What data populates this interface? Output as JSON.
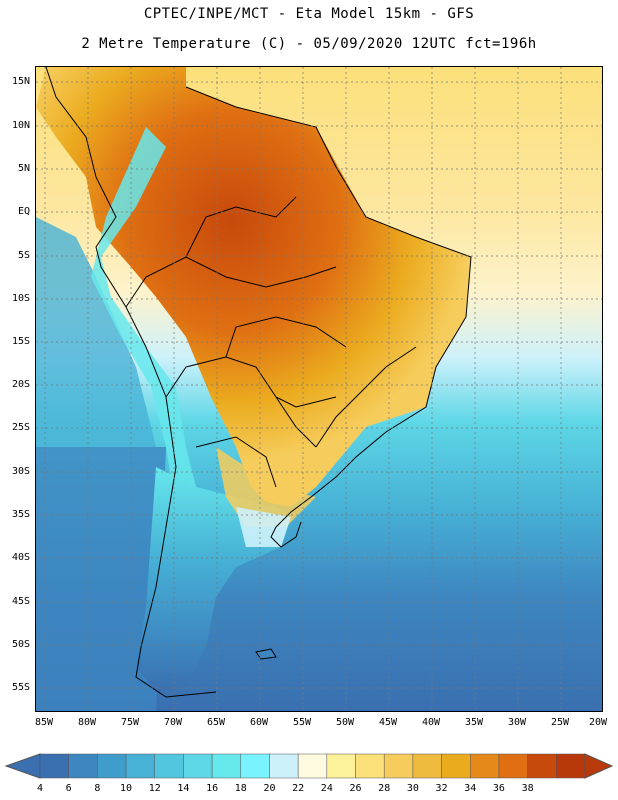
{
  "header": {
    "line1": "CPTEC/INPE/MCT -  Eta Model 15km - GFS",
    "line2": "2 Metre Temperature (C) - 05/09/2020 12UTC fct=196h"
  },
  "axes": {
    "lat_labels": [
      "15N",
      "10N",
      "5N",
      "EQ",
      "5S",
      "10S",
      "15S",
      "20S",
      "25S",
      "30S",
      "35S",
      "40S",
      "45S",
      "50S",
      "55S"
    ],
    "lon_labels": [
      "85W",
      "80W",
      "75W",
      "70W",
      "65W",
      "60W",
      "55W",
      "50W",
      "45W",
      "40W",
      "35W",
      "30W",
      "25W",
      "20W"
    ]
  },
  "colorbar": {
    "labels": [
      "4",
      "6",
      "8",
      "10",
      "12",
      "14",
      "16",
      "18",
      "20",
      "22",
      "24",
      "26",
      "28",
      "30",
      "32",
      "34",
      "36",
      "38"
    ],
    "colors": [
      "#3a6fb0",
      "#3d86c0",
      "#3f9dcc",
      "#47b2d6",
      "#53c6df",
      "#5ed7e6",
      "#66e8ec",
      "#79f3ff",
      "#cdf1fb",
      "#fefbe0",
      "#fdf29a",
      "#fbe07a",
      "#f6cd5c",
      "#efbb3e",
      "#ebab1f",
      "#e58a1a",
      "#df6f12",
      "#c8490c",
      "#b8380a"
    ],
    "low_arrow_color": "#3a6fb0",
    "high_arrow_color": "#b83a0a"
  }
}
